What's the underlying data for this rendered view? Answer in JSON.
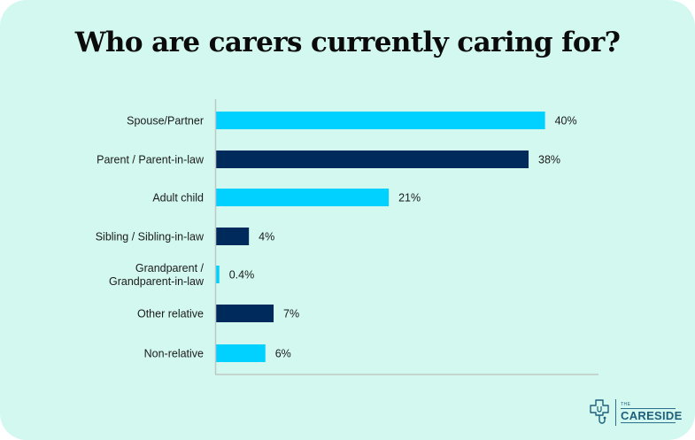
{
  "chart_data": {
    "type": "bar",
    "orientation": "horizontal",
    "title": "Who are carers currently caring for?",
    "xlabel": "",
    "ylabel": "",
    "categories": [
      "Spouse/Partner",
      "Parent / Parent-in-law",
      "Adult child",
      "Sibling / Sibling-in-law",
      "Grandparent / Grandparent-in-law",
      "Other relative",
      "Non-relative"
    ],
    "category_lines": [
      [
        "Spouse/Partner"
      ],
      [
        "Parent / Parent-in-law"
      ],
      [
        "Adult child"
      ],
      [
        "Sibling / Sibling-in-law"
      ],
      [
        "Grandparent /",
        "Grandparent-in-law"
      ],
      [
        "Other relative"
      ],
      [
        "Non-relative"
      ]
    ],
    "values": [
      40,
      38,
      21,
      4,
      0.4,
      7,
      6
    ],
    "value_labels": [
      "40%",
      "38%",
      "21%",
      "4%",
      "0.4%",
      "7%",
      "6%"
    ],
    "bar_colors": [
      "#00d1ff",
      "#002a5c",
      "#00d1ff",
      "#002a5c",
      "#00d1ff",
      "#002a5c",
      "#00d1ff"
    ],
    "xlim": [
      0,
      46.5
    ],
    "grid": false,
    "legend": "none",
    "axis_color": "#bfc7c4"
  },
  "branding": {
    "logo_the": "THE",
    "logo_name": "CARESIDE",
    "logo_color": "#1e5f7a"
  },
  "colors": {
    "background": "#d2f8ef",
    "accent_light": "#00d1ff",
    "accent_dark": "#002a5c"
  }
}
